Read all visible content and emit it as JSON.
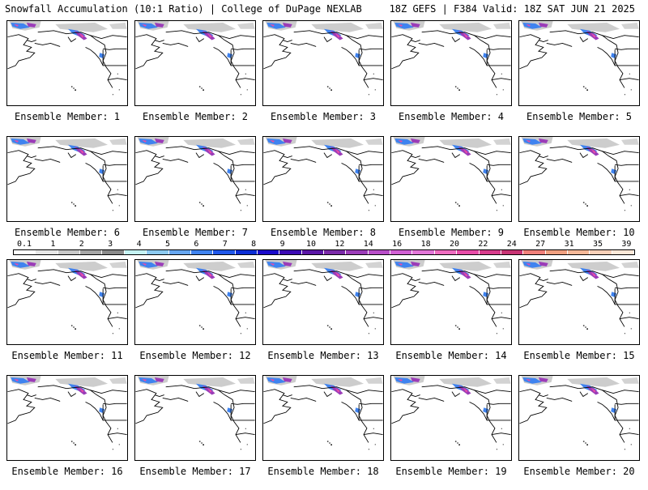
{
  "header": {
    "left": "Snowfall Accumulation (10:1 Ratio) | College of DuPage NEXLAB",
    "right": "18Z GEFS | F384 Valid: 18Z SAT JUN 21 2025"
  },
  "members": [
    "Ensemble Member: 1",
    "Ensemble Member: 2",
    "Ensemble Member: 3",
    "Ensemble Member: 4",
    "Ensemble Member: 5",
    "Ensemble Member: 6",
    "Ensemble Member: 7",
    "Ensemble Member: 8",
    "Ensemble Member: 9",
    "Ensemble Member: 10",
    "Ensemble Member: 11",
    "Ensemble Member: 12",
    "Ensemble Member: 13",
    "Ensemble Member: 14",
    "Ensemble Member: 15",
    "Ensemble Member: 16",
    "Ensemble Member: 17",
    "Ensemble Member: 18",
    "Ensemble Member: 19",
    "Ensemble Member: 20"
  ],
  "legend": {
    "labels": [
      "0.1",
      "1",
      "2",
      "3",
      "4",
      "5",
      "6",
      "7",
      "8",
      "9",
      "10",
      "12",
      "14",
      "16",
      "18",
      "20",
      "22",
      "24",
      "27",
      "31",
      "35",
      "39"
    ],
    "colors": [
      "#ffffff",
      "#e6e6e6",
      "#c8c8c8",
      "#a6a6a6",
      "#8a8a8a",
      "#c4f2f2",
      "#8ccaf0",
      "#66a6f0",
      "#3f83ef",
      "#1f57ea",
      "#0b2ed6",
      "#1a0acb",
      "#3c0ab4",
      "#5a16a6",
      "#7a2aa8",
      "#9b3cb8",
      "#b84ec8",
      "#d160d4",
      "#e276d8",
      "#ee6cc0",
      "#e84ca8",
      "#d83c8c",
      "#c83474",
      "#f0807a",
      "#f0a080",
      "#f4b898",
      "#f8d0b8",
      "#fde8d8"
    ]
  },
  "colors": {
    "land_outline": "#000000",
    "snow_light": "#c8c8c8",
    "snow_blue": "#3f83ef",
    "snow_purple": "#9b3cb8",
    "snow_pink": "#e84ca8"
  }
}
